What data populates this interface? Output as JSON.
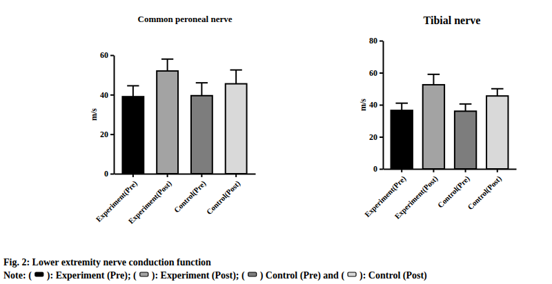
{
  "chart_data": [
    {
      "type": "bar",
      "title": "Common peroneal nerve",
      "categories": [
        "Experiment(Pre)",
        "Experiment(Post)",
        "Control(Pre)",
        "Control(Post)"
      ],
      "values": [
        39,
        52,
        39.5,
        45.5
      ],
      "errors": [
        5.5,
        6,
        6.5,
        7
      ],
      "colors": [
        "#000000",
        "#a3a3a3",
        "#7d7d7d",
        "#d9d9d9"
      ],
      "y_label": "m/s",
      "ylim": [
        0,
        60
      ],
      "yticks": [
        0,
        20,
        40,
        60
      ]
    },
    {
      "type": "bar",
      "title": "Tibial nerve",
      "categories": [
        "Experiment(Pre)",
        "Experiment(Post)",
        "Control(Pre)",
        "Control(Post)"
      ],
      "values": [
        36.5,
        52.5,
        36,
        45.5
      ],
      "errors": [
        4.5,
        6.5,
        4.5,
        4.5
      ],
      "colors": [
        "#000000",
        "#a3a3a3",
        "#7d7d7d",
        "#d9d9d9"
      ],
      "y_label": "m/s",
      "ylim": [
        0,
        80
      ],
      "yticks": [
        0,
        20,
        40,
        60,
        80
      ]
    }
  ],
  "caption": "Fig. 2: Lower extremity nerve conduction function",
  "note": [
    "Note: (",
    "): Experiment (Pre); (",
    "): Experiment (Post); (",
    ") Control (Pre) and (",
    "): Control (Post)"
  ]
}
